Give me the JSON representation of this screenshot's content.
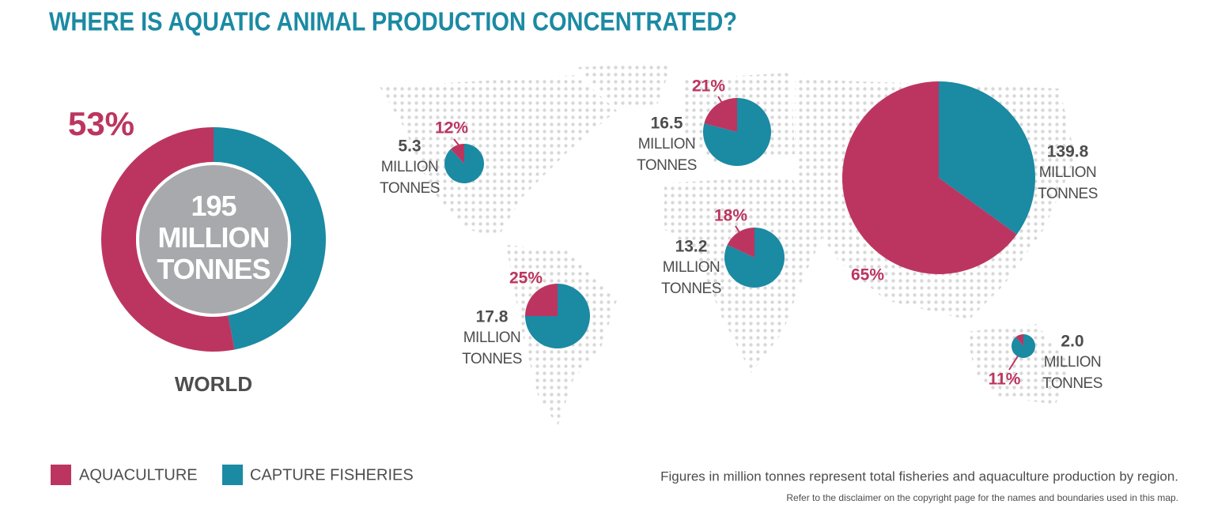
{
  "title": "WHERE IS AQUATIC ANIMAL PRODUCTION CONCENTRATED?",
  "legend": {
    "items": [
      {
        "name": "AQUACULTURE",
        "color": "#bc3560"
      },
      {
        "name": "CAPTURE FISHERIES",
        "color": "#1b8aa3"
      }
    ]
  },
  "unit": "MILLION TONNES",
  "notes": [
    "Figures in million tonnes represent total fisheries and aquaculture production by region.",
    "Refer to the disclaimer on the copyright page for the names and boundaries used in this map."
  ],
  "chart_data": [
    {
      "type": "donut",
      "label": "WORLD",
      "total": 195,
      "values": [
        53,
        47
      ],
      "value_labels": [
        "53%",
        null
      ]
    },
    {
      "type": "pie",
      "total": 5.3,
      "values": [
        12,
        88
      ],
      "value_labels": [
        "12%",
        null
      ]
    },
    {
      "type": "pie",
      "total": 17.8,
      "values": [
        25,
        75
      ],
      "value_labels": [
        "25%",
        null
      ]
    },
    {
      "type": "pie",
      "total": 16.5,
      "values": [
        21,
        79
      ],
      "value_labels": [
        "21%",
        null
      ]
    },
    {
      "type": "pie",
      "total": 13.2,
      "values": [
        18,
        82
      ],
      "value_labels": [
        "18%",
        null
      ]
    },
    {
      "type": "pie",
      "total": 139.8,
      "values": [
        65,
        35
      ],
      "value_labels": [
        "65%",
        null
      ]
    },
    {
      "type": "pie",
      "total": {
        "value": 2,
        "label": "2.0"
      },
      "values": [
        11,
        89
      ],
      "value_labels": [
        "11%",
        null
      ]
    }
  ]
}
